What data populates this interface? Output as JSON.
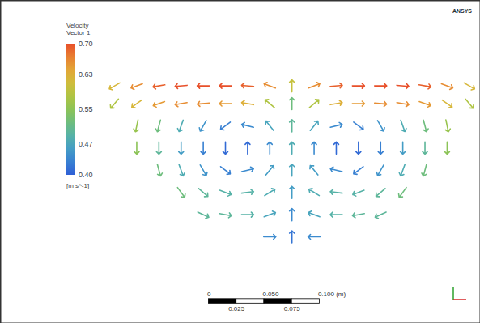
{
  "chart_data": {
    "type": "vector",
    "title": "Velocity Vector 1",
    "colorbar_unit": "[m s^-1]",
    "annotations": [
      "ANSYS"
    ],
    "xlim": [
      -0.263,
      0.17
    ],
    "ylim": [
      -0.218,
      0.073
    ],
    "xticks": [],
    "yticks": [],
    "tick_labels": false,
    "colorbar": {
      "range": [
        0.4,
        0.7
      ],
      "ticks": [
        {
          "value": 0.7,
          "label": "0.70"
        },
        0.63,
        0.55,
        0.47,
        {
          "value": 0.4,
          "label": "0.40"
        }
      ]
    },
    "scale_bar": {
      "ticks": [
        {
          "value": 0,
          "label": "0"
        },
        {
          "value": 0.025,
          "label": "0.025"
        },
        {
          "value": 0.05,
          "label": "0.050"
        },
        {
          "value": 0.075,
          "label": "0.075"
        },
        {
          "value": 0.1,
          "label": "0.100"
        }
      ],
      "unit": "(m)"
    },
    "vectors": {
      "x": [
        -0.16,
        -0.14,
        -0.12,
        -0.1,
        -0.08,
        -0.06,
        -0.04,
        -0.02,
        0,
        0.02,
        0.04,
        0.06,
        0.08,
        0.1,
        0.12,
        0.14,
        0.16,
        -0.16,
        -0.14,
        -0.12,
        -0.1,
        -0.08,
        -0.06,
        -0.04,
        -0.02,
        0,
        0.02,
        0.04,
        0.06,
        0.08,
        0.1,
        0.12,
        0.14,
        0.16,
        -0.14,
        -0.12,
        -0.1,
        -0.08,
        -0.06,
        -0.04,
        -0.02,
        0,
        0.02,
        0.04,
        0.06,
        0.08,
        0.1,
        0.12,
        0.14,
        -0.14,
        -0.12,
        -0.1,
        -0.08,
        -0.06,
        -0.04,
        -0.02,
        0,
        0.02,
        0.04,
        0.06,
        0.08,
        0.1,
        0.12,
        0.14,
        -0.12,
        -0.1,
        -0.08,
        -0.06,
        -0.04,
        -0.02,
        0,
        0.02,
        0.04,
        0.06,
        0.08,
        0.1,
        0.12,
        -0.1,
        -0.08,
        -0.06,
        -0.04,
        -0.02,
        0,
        0.02,
        0.04,
        0.06,
        0.08,
        0.1,
        -0.08,
        -0.06,
        -0.04,
        -0.02,
        0,
        0.02,
        0.04,
        0.06,
        0.08,
        -0.02,
        0,
        0.02
      ],
      "y": [
        -0.004,
        -0.004,
        -0.004,
        -0.004,
        -0.004,
        -0.004,
        -0.004,
        -0.004,
        -0.004,
        -0.004,
        -0.004,
        -0.004,
        -0.004,
        -0.004,
        -0.004,
        -0.004,
        -0.004,
        -0.02,
        -0.02,
        -0.02,
        -0.02,
        -0.02,
        -0.02,
        -0.02,
        -0.02,
        -0.02,
        -0.02,
        -0.02,
        -0.02,
        -0.02,
        -0.02,
        -0.02,
        -0.02,
        -0.02,
        -0.04,
        -0.04,
        -0.04,
        -0.04,
        -0.04,
        -0.04,
        -0.04,
        -0.04,
        -0.04,
        -0.04,
        -0.04,
        -0.04,
        -0.04,
        -0.04,
        -0.04,
        -0.06,
        -0.06,
        -0.06,
        -0.06,
        -0.06,
        -0.06,
        -0.06,
        -0.06,
        -0.06,
        -0.06,
        -0.06,
        -0.06,
        -0.06,
        -0.06,
        -0.06,
        -0.08,
        -0.08,
        -0.08,
        -0.08,
        -0.08,
        -0.08,
        -0.08,
        -0.08,
        -0.08,
        -0.08,
        -0.08,
        -0.08,
        -0.08,
        -0.1,
        -0.1,
        -0.1,
        -0.1,
        -0.1,
        -0.1,
        -0.1,
        -0.1,
        -0.1,
        -0.1,
        -0.1,
        -0.12,
        -0.12,
        -0.12,
        -0.12,
        -0.12,
        -0.12,
        -0.12,
        -0.12,
        -0.12,
        -0.14,
        -0.14,
        -0.14
      ],
      "direction": [
        -120,
        -110,
        -100,
        -95,
        -90,
        -90,
        -85,
        -70,
        0,
        70,
        85,
        90,
        90,
        95,
        100,
        110,
        120,
        -140,
        -125,
        -110,
        -100,
        -95,
        -90,
        -80,
        -50,
        0,
        50,
        80,
        90,
        95,
        100,
        110,
        125,
        140,
        -168,
        -165,
        -160,
        -150,
        -127,
        -76,
        -39,
        0,
        39,
        76,
        127,
        150,
        160,
        165,
        168,
        180,
        180,
        180,
        180,
        180,
        0,
        0,
        0,
        0,
        0,
        180,
        180,
        180,
        180,
        180,
        165,
        160,
        150,
        127,
        76,
        39,
        0,
        -39,
        -76,
        -127,
        -150,
        -160,
        -165,
        144,
        131,
        111,
        83,
        58,
        0,
        -58,
        -83,
        -111,
        -131,
        -144,
        115,
        100,
        90,
        70,
        0,
        -70,
        -90,
        -100,
        -115,
        90,
        0,
        -90
      ],
      "speed": [
        0.62,
        0.66,
        0.69,
        0.7,
        0.7,
        0.7,
        0.69,
        0.66,
        0.6,
        0.66,
        0.69,
        0.7,
        0.7,
        0.7,
        0.69,
        0.66,
        0.62,
        0.58,
        0.62,
        0.65,
        0.66,
        0.66,
        0.65,
        0.63,
        0.58,
        0.52,
        0.58,
        0.63,
        0.65,
        0.66,
        0.66,
        0.65,
        0.62,
        0.58,
        0.56,
        0.52,
        0.48,
        0.45,
        0.43,
        0.44,
        0.47,
        0.5,
        0.47,
        0.44,
        0.43,
        0.45,
        0.48,
        0.52,
        0.56,
        0.55,
        0.5,
        0.46,
        0.43,
        0.41,
        0.41,
        0.44,
        0.48,
        0.44,
        0.41,
        0.41,
        0.43,
        0.46,
        0.5,
        0.55,
        0.52,
        0.48,
        0.45,
        0.43,
        0.44,
        0.46,
        0.47,
        0.46,
        0.44,
        0.43,
        0.45,
        0.48,
        0.52,
        0.52,
        0.5,
        0.49,
        0.49,
        0.48,
        0.46,
        0.48,
        0.49,
        0.49,
        0.5,
        0.52,
        0.5,
        0.5,
        0.49,
        0.47,
        0.44,
        0.47,
        0.49,
        0.5,
        0.5,
        0.44,
        0.42,
        0.44
      ]
    }
  }
}
